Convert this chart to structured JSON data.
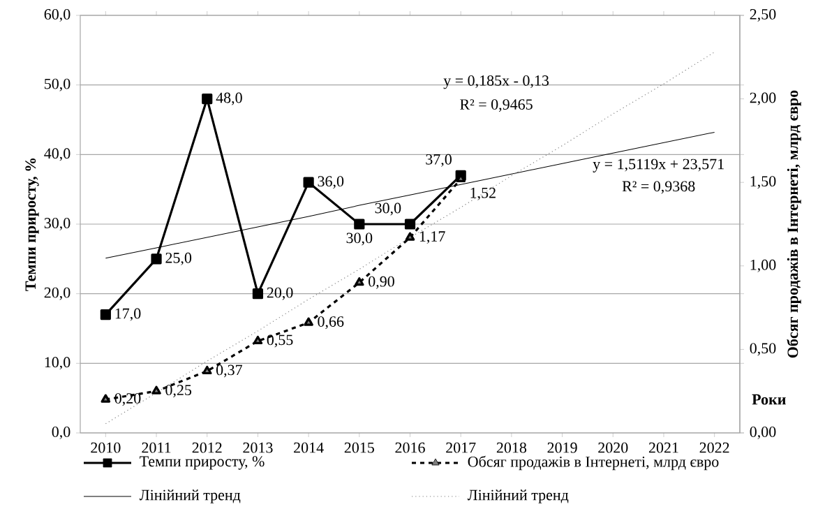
{
  "chart_data": {
    "type": "line",
    "xlabel": "Роки",
    "ylabel": "Темпи приросту, %",
    "y2label": "Обсяг продажів в Інтернеті, млрд євро",
    "categories": [
      "2010",
      "2011",
      "2012",
      "2013",
      "2014",
      "2015",
      "2016",
      "2017",
      "2018",
      "2019",
      "2020",
      "2021",
      "2022"
    ],
    "series": [
      {
        "name": "Темпи приросту, %",
        "color": "#000000",
        "marker": "square",
        "line_style": "solid",
        "values": [
          17,
          25,
          48,
          20,
          36,
          30,
          30,
          37,
          null,
          null,
          null,
          null,
          null
        ],
        "value_labels": [
          "17,0",
          "25,0",
          "48,0",
          "20,0",
          "36,0",
          "30,0",
          "30,0",
          "37,0",
          null,
          null,
          null,
          null,
          null
        ]
      },
      {
        "name": "Обсяг продажів в Інтернеті, млрд євро",
        "color": "#000000",
        "marker": "triangle",
        "line_style": "dashed",
        "axis": "y2",
        "values": [
          0.2,
          0.25,
          0.37,
          0.55,
          0.66,
          0.9,
          1.17,
          1.52,
          null,
          null,
          null,
          null,
          null
        ],
        "value_labels": [
          "0,20",
          "0,25",
          "0,37",
          "0,55",
          "0,66",
          "0,90",
          "1,17",
          "1,52",
          null,
          null,
          null,
          null,
          null
        ]
      },
      {
        "name": "Лінійний тренд",
        "color": "#000000",
        "marker": "none",
        "line_style": "solid",
        "values": [
          25.1,
          26.6,
          28.1,
          29.6,
          31.1,
          32.7,
          34.2,
          35.7,
          37.2,
          38.7,
          40.2,
          41.7,
          43.2
        ]
      },
      {
        "name": "Лінійний тренд",
        "color": "#808080",
        "marker": "none",
        "line_style": "dotted",
        "axis": "y2",
        "values": [
          0.055,
          0.24,
          0.43,
          0.61,
          0.8,
          0.98,
          1.17,
          1.35,
          1.54,
          1.72,
          1.91,
          2.09,
          2.28
        ]
      }
    ],
    "ylim": [
      0,
      60
    ],
    "yticks": [
      {
        "value": 0,
        "label": "0,0"
      },
      {
        "value": 10,
        "label": "10,0"
      },
      {
        "value": 20,
        "label": "20,0"
      },
      {
        "value": 30,
        "label": "30,0"
      },
      {
        "value": 40,
        "label": "40,0"
      },
      {
        "value": 50,
        "label": "50,0"
      },
      {
        "value": 60,
        "label": "60,0"
      }
    ],
    "y2lim": [
      0,
      2.5
    ],
    "y2ticks": [
      {
        "value": 0,
        "label": "0,00"
      },
      {
        "value": 0.5,
        "label": "0,50"
      },
      {
        "value": 1,
        "label": "1,00"
      },
      {
        "value": 1.5,
        "label": "1,50"
      },
      {
        "value": 2,
        "label": "2,00"
      },
      {
        "value": 2.5,
        "label": "2,50"
      }
    ],
    "annotations": [
      "y = 0,185x - 0,13",
      "R² = 0,9465",
      "y = 1,5119x + 23,571",
      "R² = 0,9368"
    ],
    "grid": "y",
    "legend": "bottom"
  }
}
